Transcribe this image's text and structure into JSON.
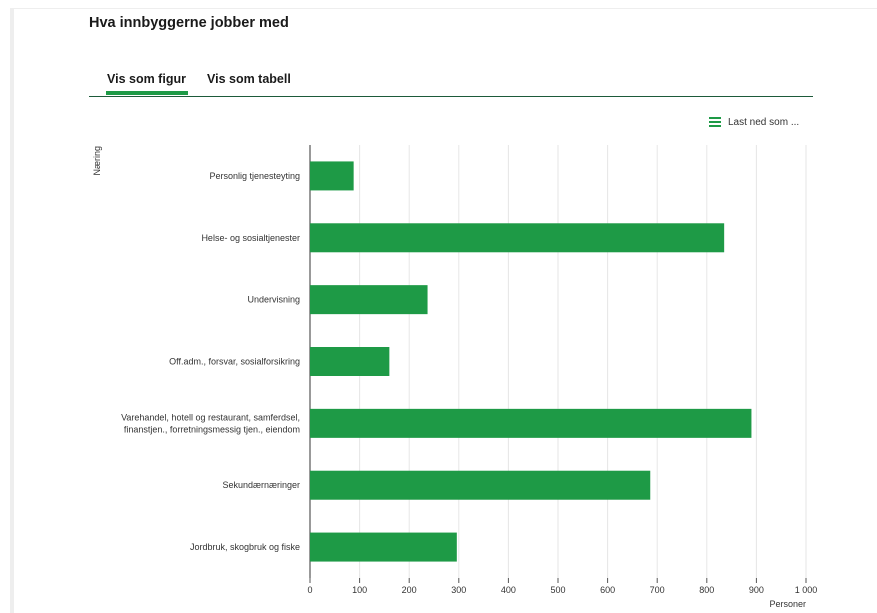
{
  "page": {
    "title": "Hva innbyggerne jobber med"
  },
  "tabs": [
    {
      "label": "Vis som figur",
      "active": true
    },
    {
      "label": "Vis som tabell",
      "active": false
    }
  ],
  "download": {
    "label": "Last ned som ...",
    "icon": "menu-icon"
  },
  "colors": {
    "bar": "#1e9a46",
    "accent": "#1e9a46",
    "tab_rule": "#1d5a3a",
    "grid": "#e6e6e6"
  },
  "chart_data": {
    "type": "bar",
    "orientation": "horizontal",
    "ylabel": "Næring",
    "xlabel": "Personer",
    "categories": [
      [
        "Personlig tjenesteyting"
      ],
      [
        "Helse- og sosialtjenester"
      ],
      [
        "Undervisning"
      ],
      [
        "Off.adm., forsvar, sosialforsikring"
      ],
      [
        "Varehandel, hotell og restaurant, samferdsel,",
        "finanstjen., forretningsmessig tjen., eiendom"
      ],
      [
        "Sekundærnæringer"
      ],
      [
        "Jordbruk, skogbruk og fiske"
      ]
    ],
    "values": [
      88,
      835,
      237,
      160,
      890,
      686,
      296
    ],
    "xlim": [
      0,
      1000
    ],
    "ticks": [
      0,
      100,
      200,
      300,
      400,
      500,
      600,
      700,
      800,
      900,
      1000
    ],
    "tick_labels": [
      "0",
      "100",
      "200",
      "300",
      "400",
      "500",
      "600",
      "700",
      "800",
      "900",
      "1 000"
    ],
    "grid": true,
    "legend": false
  }
}
